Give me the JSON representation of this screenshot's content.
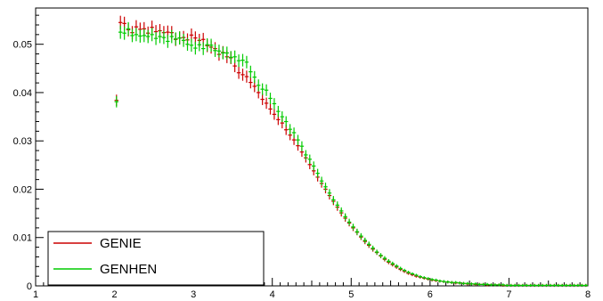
{
  "chart_data": {
    "type": "scatter",
    "title": "",
    "xlabel": "",
    "ylabel": "",
    "xlim": [
      1,
      8
    ],
    "ylim": [
      0,
      0.0575
    ],
    "grid": false,
    "legend_position": "bottom-left",
    "x_ticks": [
      "1",
      "2",
      "3",
      "4",
      "5",
      "6",
      "7",
      "8"
    ],
    "y_ticks": [
      "0",
      "0.01",
      "0.02",
      "0.03",
      "0.04",
      "0.05"
    ],
    "series": [
      {
        "name": "GENIE",
        "color": "#cc0000",
        "x": [
          2.025,
          2.075,
          2.125,
          2.175,
          2.225,
          2.275,
          2.325,
          2.375,
          2.425,
          2.475,
          2.525,
          2.575,
          2.625,
          2.675,
          2.725,
          2.775,
          2.825,
          2.875,
          2.925,
          2.975,
          3.025,
          3.075,
          3.125,
          3.175,
          3.225,
          3.275,
          3.325,
          3.375,
          3.425,
          3.475,
          3.525,
          3.575,
          3.625,
          3.675,
          3.725,
          3.775,
          3.825,
          3.875,
          3.925,
          3.975,
          4.025,
          4.075,
          4.125,
          4.175,
          4.225,
          4.275,
          4.325,
          4.375,
          4.425,
          4.475,
          4.525,
          4.575,
          4.625,
          4.675,
          4.725,
          4.775,
          4.825,
          4.875,
          4.925,
          4.975,
          5.025,
          5.075,
          5.125,
          5.175,
          5.225,
          5.275,
          5.325,
          5.375,
          5.425,
          5.475,
          5.525,
          5.575,
          5.625,
          5.675,
          5.725,
          5.775,
          5.825,
          5.875,
          5.925,
          5.975,
          6.025,
          6.075,
          6.125,
          6.175,
          6.225,
          6.275,
          6.325,
          6.375,
          6.425,
          6.475,
          6.525,
          6.575,
          6.625,
          6.675,
          6.725,
          6.775,
          6.825,
          6.875,
          6.925,
          6.975,
          7.025,
          7.075,
          7.125,
          7.175,
          7.225,
          7.275,
          7.325,
          7.375,
          7.425,
          7.475,
          7.525,
          7.575,
          7.625,
          7.675,
          7.725,
          7.775,
          7.825,
          7.875,
          7.925,
          7.975
        ],
        "y": [
          0.0384,
          0.0545,
          0.0543,
          0.053,
          0.0524,
          0.0536,
          0.0531,
          0.0532,
          0.0523,
          0.0535,
          0.0526,
          0.0528,
          0.0524,
          0.0525,
          0.0524,
          0.051,
          0.0513,
          0.0514,
          0.0509,
          0.0519,
          0.0513,
          0.0508,
          0.051,
          0.0497,
          0.0494,
          0.0491,
          0.0479,
          0.0483,
          0.0474,
          0.0472,
          0.0455,
          0.0441,
          0.0437,
          0.0433,
          0.0421,
          0.0413,
          0.04,
          0.0386,
          0.0378,
          0.0366,
          0.0355,
          0.0344,
          0.0337,
          0.0323,
          0.0312,
          0.0302,
          0.029,
          0.0277,
          0.0265,
          0.0251,
          0.0238,
          0.0225,
          0.0212,
          0.02,
          0.0187,
          0.0175,
          0.0163,
          0.0151,
          0.014,
          0.013,
          0.012,
          0.0111,
          0.0101,
          0.0092,
          0.0084,
          0.0076,
          0.0069,
          0.0062,
          0.0055,
          0.0049,
          0.0044,
          0.0039,
          0.0034,
          0.003,
          0.0026,
          0.0023,
          0.002,
          0.0018,
          0.0016,
          0.0014,
          0.0012,
          0.0011,
          0.001,
          0.0009,
          0.0008,
          0.0007,
          0.0006,
          0.0006,
          0.0005,
          0.0004,
          0.0004,
          0.0003,
          0.0003,
          0.0003,
          0.0002,
          0.0002,
          0.0002,
          0.0002,
          0.0001,
          0.0001,
          0.0001,
          0.0001,
          0.0001,
          0.0001,
          0.0001,
          0.0001,
          0.0001,
          0.0001,
          0.0001,
          0.0001,
          0.0001,
          0.0001,
          0.0001,
          0.0001,
          0.0001,
          0.0001,
          0.0001,
          0.0001,
          0.0001,
          0.0001
        ]
      },
      {
        "name": "GENHEN",
        "color": "#00cc00",
        "x": [
          2.025,
          2.075,
          2.125,
          2.175,
          2.225,
          2.275,
          2.325,
          2.375,
          2.425,
          2.475,
          2.525,
          2.575,
          2.625,
          2.675,
          2.725,
          2.775,
          2.825,
          2.875,
          2.925,
          2.975,
          3.025,
          3.075,
          3.125,
          3.175,
          3.225,
          3.275,
          3.325,
          3.375,
          3.425,
          3.475,
          3.525,
          3.575,
          3.625,
          3.675,
          3.725,
          3.775,
          3.825,
          3.875,
          3.925,
          3.975,
          4.025,
          4.075,
          4.125,
          4.175,
          4.225,
          4.275,
          4.325,
          4.375,
          4.425,
          4.475,
          4.525,
          4.575,
          4.625,
          4.675,
          4.725,
          4.775,
          4.825,
          4.875,
          4.925,
          4.975,
          5.025,
          5.075,
          5.125,
          5.175,
          5.225,
          5.275,
          5.325,
          5.375,
          5.425,
          5.475,
          5.525,
          5.575,
          5.625,
          5.675,
          5.725,
          5.775,
          5.825,
          5.875,
          5.925,
          5.975,
          6.025,
          6.075,
          6.125,
          6.175,
          6.225,
          6.275,
          6.325,
          6.375,
          6.425,
          6.475,
          6.525,
          6.575,
          6.625,
          6.675,
          6.725,
          6.775,
          6.825,
          6.875,
          6.925,
          6.975,
          7.025,
          7.075,
          7.125,
          7.175,
          7.225,
          7.275,
          7.325,
          7.375,
          7.425,
          7.475,
          7.525,
          7.575,
          7.625,
          7.675,
          7.725,
          7.775,
          7.825,
          7.875,
          7.925,
          7.975
        ],
        "y": [
          0.0381,
          0.0525,
          0.0523,
          0.0532,
          0.0518,
          0.052,
          0.0517,
          0.0518,
          0.0516,
          0.052,
          0.0512,
          0.0516,
          0.0514,
          0.0506,
          0.0516,
          0.0511,
          0.0513,
          0.0508,
          0.05,
          0.0498,
          0.0492,
          0.0499,
          0.0491,
          0.0499,
          0.0498,
          0.0487,
          0.0486,
          0.0482,
          0.0482,
          0.0473,
          0.0474,
          0.0466,
          0.0467,
          0.0463,
          0.0443,
          0.0432,
          0.0415,
          0.0407,
          0.0405,
          0.0388,
          0.0377,
          0.0361,
          0.035,
          0.034,
          0.0324,
          0.0317,
          0.0302,
          0.0289,
          0.0271,
          0.0262,
          0.0248,
          0.0233,
          0.0217,
          0.0205,
          0.0192,
          0.0178,
          0.0167,
          0.0155,
          0.0143,
          0.0132,
          0.0122,
          0.0112,
          0.0103,
          0.0094,
          0.0086,
          0.0078,
          0.007,
          0.0063,
          0.0057,
          0.0051,
          0.0046,
          0.0041,
          0.0036,
          0.0032,
          0.0028,
          0.0025,
          0.0022,
          0.0019,
          0.0017,
          0.0015,
          0.0013,
          0.0012,
          0.001,
          0.0009,
          0.0008,
          0.0007,
          0.0007,
          0.0006,
          0.0005,
          0.0005,
          0.0004,
          0.0004,
          0.0003,
          0.0003,
          0.0003,
          0.0002,
          0.0002,
          0.0002,
          0.0002,
          0.0001,
          0.0001,
          0.0001,
          0.0001,
          0.0001,
          0.0001,
          0.0001,
          0.0001,
          0.0001,
          0.0001,
          0.0001,
          0.0001,
          0.0001,
          0.0001,
          0.0001,
          0.0001,
          0.0001,
          0.0001,
          0.0001,
          0.0001,
          0.0001
        ]
      }
    ]
  }
}
